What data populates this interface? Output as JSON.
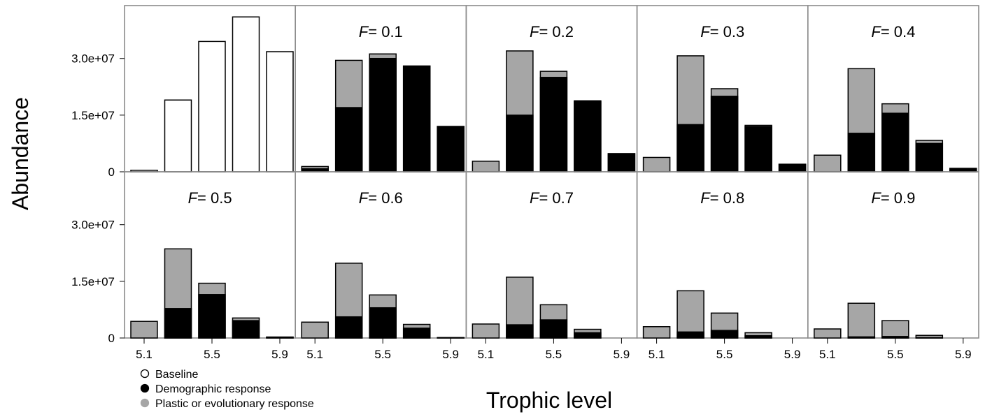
{
  "chart_data": {
    "type": "bar",
    "stacked": true,
    "xlabel": "Trophic level",
    "ylabel": "Abundance",
    "ylim": [
      0,
      44000000
    ],
    "yticks": [
      0,
      15000000,
      30000000
    ],
    "ytick_labels": [
      "0",
      "1.5e+07",
      "3.0e+07"
    ],
    "x": [
      5.1,
      5.3,
      5.5,
      5.7,
      5.9
    ],
    "xtick_labels": [
      "5.1",
      "5.5",
      "5.9"
    ],
    "xtick_values": [
      5.1,
      5.5,
      5.9
    ],
    "colors": {
      "baseline": "#ffffff",
      "demographic": "#000000",
      "plastic": "#a6a6a6",
      "panel_border": "#8c8c8c"
    },
    "legend": [
      {
        "key": "baseline",
        "label": "Baseline",
        "marker": "open-circle"
      },
      {
        "key": "demographic",
        "label": "Demographic response",
        "marker": "black-circle"
      },
      {
        "key": "plastic",
        "label": "Plastic or evolutionary response",
        "marker": "grey-circle"
      }
    ],
    "panels": [
      {
        "title_var": "",
        "title_value": "",
        "baseline": [
          400000,
          19000000,
          34500000,
          41000000,
          31800000
        ]
      },
      {
        "title_var": "F",
        "title_value": "= 0.1",
        "demographic": [
          800000,
          17000000,
          30000000,
          28000000,
          12000000
        ],
        "plastic": [
          600000,
          12500000,
          1200000,
          0,
          0
        ]
      },
      {
        "title_var": "F",
        "title_value": "= 0.2",
        "demographic": [
          0,
          15000000,
          25000000,
          18600000,
          4800000
        ],
        "plastic": [
          2800000,
          17000000,
          1600000,
          200000,
          0
        ]
      },
      {
        "title_var": "F",
        "title_value": "= 0.3",
        "demographic": [
          0,
          12500000,
          20000000,
          12000000,
          2000000
        ],
        "plastic": [
          3800000,
          18200000,
          2000000,
          300000,
          0
        ]
      },
      {
        "title_var": "F",
        "title_value": "= 0.4",
        "demographic": [
          0,
          10200000,
          15500000,
          7500000,
          900000
        ],
        "plastic": [
          4400000,
          17100000,
          2500000,
          800000,
          0
        ]
      },
      {
        "title_var": "F",
        "title_value": "= 0.5",
        "demographic": [
          0,
          7800000,
          11500000,
          4600000,
          250000
        ],
        "plastic": [
          4400000,
          15800000,
          3000000,
          700000,
          0
        ]
      },
      {
        "title_var": "F",
        "title_value": "= 0.6",
        "demographic": [
          0,
          5600000,
          8000000,
          2600000,
          100000
        ],
        "plastic": [
          4200000,
          14200000,
          3400000,
          1000000,
          0
        ]
      },
      {
        "title_var": "F",
        "title_value": "= 0.7",
        "demographic": [
          0,
          3500000,
          4800000,
          1400000,
          0
        ],
        "plastic": [
          3700000,
          12600000,
          4000000,
          900000,
          0
        ]
      },
      {
        "title_var": "F",
        "title_value": "= 0.8",
        "demographic": [
          0,
          1600000,
          2000000,
          600000,
          0
        ],
        "plastic": [
          3000000,
          10900000,
          4600000,
          800000,
          0
        ]
      },
      {
        "title_var": "F",
        "title_value": "= 0.9",
        "demographic": [
          0,
          300000,
          400000,
          100000,
          0
        ],
        "plastic": [
          2400000,
          8900000,
          4200000,
          600000,
          0
        ]
      }
    ]
  }
}
